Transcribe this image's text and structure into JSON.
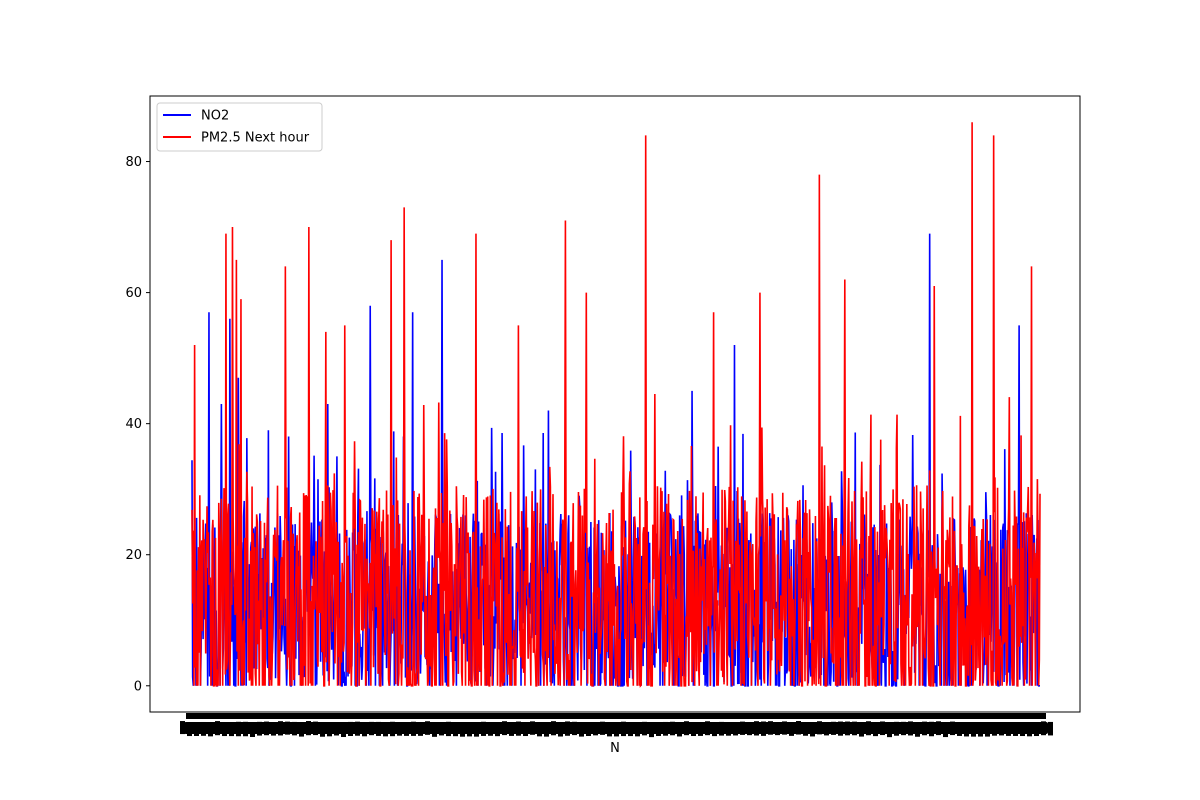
{
  "chart_data": {
    "type": "line",
    "title": "",
    "xlabel": "N",
    "ylabel": "",
    "ylim": [
      -4,
      90
    ],
    "yticks": [
      0,
      20,
      40,
      60,
      80
    ],
    "grid": false,
    "legend_position": "top-left",
    "x_tick_labels_overlapping": true,
    "n_points": 1300,
    "series": [
      {
        "name": "NO2",
        "color": "#0000ff",
        "typical_range": [
          0,
          30
        ],
        "baseline": 12,
        "peaks": [
          {
            "x": 0.02,
            "y": 57
          },
          {
            "x": 0.035,
            "y": 43
          },
          {
            "x": 0.045,
            "y": 56
          },
          {
            "x": 0.055,
            "y": 47
          },
          {
            "x": 0.09,
            "y": 39
          },
          {
            "x": 0.16,
            "y": 43
          },
          {
            "x": 0.21,
            "y": 58
          },
          {
            "x": 0.26,
            "y": 57
          },
          {
            "x": 0.295,
            "y": 65
          },
          {
            "x": 0.42,
            "y": 42
          },
          {
            "x": 0.59,
            "y": 45
          },
          {
            "x": 0.64,
            "y": 52
          },
          {
            "x": 0.87,
            "y": 69
          },
          {
            "x": 0.975,
            "y": 55
          }
        ]
      },
      {
        "name": "PM2.5 Next hour",
        "color": "#ff0000",
        "typical_range": [
          0,
          35
        ],
        "baseline": 13,
        "peaks": [
          {
            "x": 0.003,
            "y": 52
          },
          {
            "x": 0.04,
            "y": 69
          },
          {
            "x": 0.048,
            "y": 70
          },
          {
            "x": 0.052,
            "y": 65
          },
          {
            "x": 0.058,
            "y": 59
          },
          {
            "x": 0.11,
            "y": 64
          },
          {
            "x": 0.138,
            "y": 70
          },
          {
            "x": 0.158,
            "y": 54
          },
          {
            "x": 0.18,
            "y": 55
          },
          {
            "x": 0.235,
            "y": 68
          },
          {
            "x": 0.25,
            "y": 73
          },
          {
            "x": 0.335,
            "y": 69
          },
          {
            "x": 0.385,
            "y": 55
          },
          {
            "x": 0.44,
            "y": 71
          },
          {
            "x": 0.465,
            "y": 60
          },
          {
            "x": 0.535,
            "y": 84
          },
          {
            "x": 0.615,
            "y": 57
          },
          {
            "x": 0.67,
            "y": 60
          },
          {
            "x": 0.74,
            "y": 78
          },
          {
            "x": 0.77,
            "y": 62
          },
          {
            "x": 0.875,
            "y": 61
          },
          {
            "x": 0.92,
            "y": 86
          },
          {
            "x": 0.945,
            "y": 84
          },
          {
            "x": 0.99,
            "y": 64
          }
        ]
      }
    ]
  }
}
